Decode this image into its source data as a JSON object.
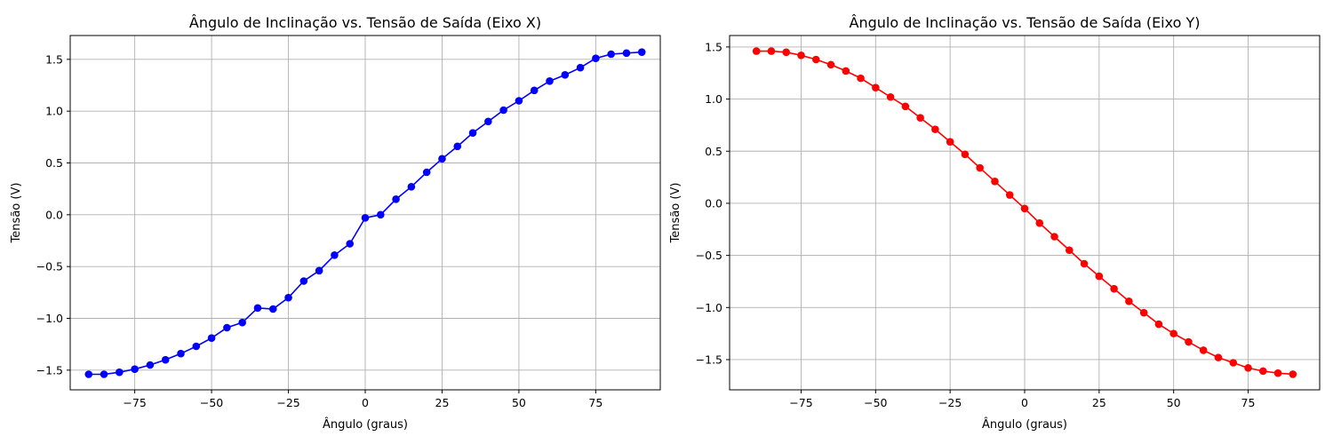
{
  "chart_data": [
    {
      "type": "line",
      "title": "Ângulo de Inclinação vs. Tensão de Saída (Eixo X)",
      "xlabel": "Ângulo (graus)",
      "ylabel": "Tensão (V)",
      "xlim": [
        -96,
        96
      ],
      "ylim": [
        -1.69,
        1.73
      ],
      "xticks": [
        -75,
        -50,
        -25,
        0,
        25,
        50,
        75
      ],
      "xtick_labels": [
        "−75",
        "−50",
        "−25",
        "0",
        "25",
        "50",
        "75"
      ],
      "yticks": [
        -1.5,
        -1.0,
        -0.5,
        0.0,
        0.5,
        1.0,
        1.5
      ],
      "ytick_labels": [
        "−1.5",
        "−1.0",
        "−0.5",
        "0.0",
        "0.5",
        "1.0",
        "1.5"
      ],
      "grid": true,
      "series": [
        {
          "color": "#0000ff",
          "marker": "circle",
          "x": [
            -90,
            -85,
            -80,
            -75,
            -70,
            -65,
            -60,
            -55,
            -50,
            -45,
            -40,
            -35,
            -30,
            -25,
            -20,
            -15,
            -10,
            -5,
            0,
            5,
            10,
            15,
            20,
            25,
            30,
            35,
            40,
            45,
            50,
            55,
            60,
            65,
            70,
            75,
            80,
            85,
            90
          ],
          "y": [
            -1.54,
            -1.54,
            -1.52,
            -1.49,
            -1.45,
            -1.4,
            -1.34,
            -1.27,
            -1.19,
            -1.09,
            -1.04,
            -0.9,
            -0.91,
            -0.8,
            -0.64,
            -0.54,
            -0.39,
            -0.28,
            -0.03,
            0.0,
            0.15,
            0.27,
            0.41,
            0.54,
            0.66,
            0.79,
            0.9,
            1.01,
            1.1,
            1.2,
            1.29,
            1.35,
            1.42,
            1.51,
            1.55,
            1.56,
            1.57
          ]
        }
      ]
    },
    {
      "type": "line",
      "title": "Ângulo de Inclinação vs. Tensão de Saída (Eixo Y)",
      "xlabel": "Ângulo (graus)",
      "ylabel": "Tensão (V)",
      "xlim": [
        -99,
        99
      ],
      "ylim": [
        -1.79,
        1.61
      ],
      "xticks": [
        -75,
        -50,
        -25,
        0,
        25,
        50,
        75
      ],
      "xtick_labels": [
        "−75",
        "−50",
        "−25",
        "0",
        "25",
        "50",
        "75"
      ],
      "yticks": [
        -1.5,
        -1.0,
        -0.5,
        0.0,
        0.5,
        1.0,
        1.5
      ],
      "ytick_labels": [
        "−1.5",
        "−1.0",
        "−0.5",
        "0.0",
        "0.5",
        "1.0",
        "1.5"
      ],
      "grid": true,
      "series": [
        {
          "color": "#ff0000",
          "marker": "circle",
          "x": [
            -90,
            -85,
            -80,
            -75,
            -70,
            -65,
            -60,
            -55,
            -50,
            -45,
            -40,
            -35,
            -30,
            -25,
            -20,
            -15,
            -10,
            -5,
            0,
            5,
            10,
            15,
            20,
            25,
            30,
            35,
            40,
            45,
            50,
            55,
            60,
            65,
            70,
            75,
            80,
            85,
            90
          ],
          "y": [
            1.46,
            1.46,
            1.45,
            1.42,
            1.38,
            1.33,
            1.27,
            1.2,
            1.11,
            1.02,
            0.93,
            0.82,
            0.71,
            0.59,
            0.47,
            0.34,
            0.21,
            0.08,
            -0.05,
            -0.19,
            -0.32,
            -0.45,
            -0.58,
            -0.7,
            -0.82,
            -0.94,
            -1.05,
            -1.16,
            -1.25,
            -1.33,
            -1.41,
            -1.48,
            -1.53,
            -1.58,
            -1.61,
            -1.63,
            -1.64
          ]
        }
      ]
    }
  ]
}
